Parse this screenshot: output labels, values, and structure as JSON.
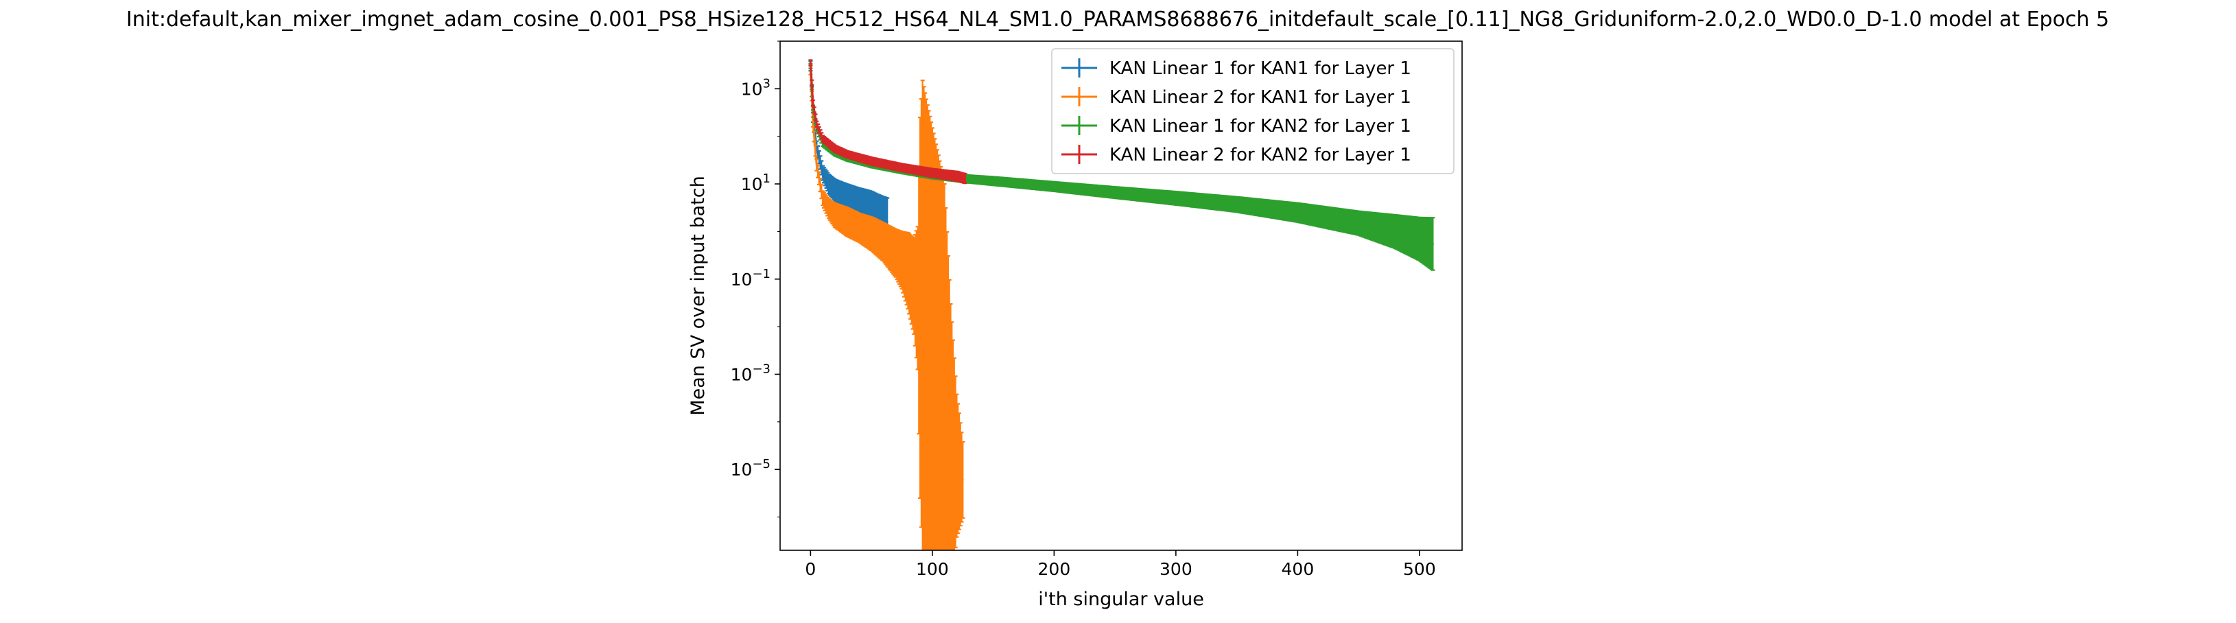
{
  "chart_data": {
    "type": "line",
    "title": "Init:default,kan_mixer_imgnet_adam_cosine_0.001_PS8_HSize128_HC512_HS64_NL4_SM1.0_PARAMS8688676_initdefault_scale_[0.11]_NG8_Griduniform-2.0,2.0_WD0.0_D-1.0 model at Epoch 5",
    "xlabel": "i'th singular value",
    "ylabel": "Mean SV over input batch",
    "xlim": [
      -25,
      535
    ],
    "ylim": [
      2e-07,
      10000
    ],
    "yscale": "log",
    "grid": false,
    "legend_position": "top-right",
    "x_ticks": [
      0,
      100,
      200,
      300,
      400,
      500
    ],
    "x_tick_labels": [
      "0",
      "100",
      "200",
      "300",
      "400",
      "500"
    ],
    "y_ticks": [
      1000,
      10,
      0.1,
      0.001,
      1e-05
    ],
    "y_tick_base": "10",
    "y_tick_exponents": [
      "3",
      "1",
      "−1",
      "−3",
      "−5"
    ],
    "series": [
      {
        "name": "KAN Linear 1 for KAN1 for Layer 1",
        "color": "#1f77b4",
        "x": [
          0,
          2,
          5,
          10,
          15,
          20,
          25,
          30,
          35,
          40,
          45,
          50,
          55,
          60,
          63
        ],
        "y": [
          3000,
          250,
          60,
          17,
          10,
          7.5,
          6.2,
          5.2,
          4.5,
          3.9,
          3.4,
          2.9,
          2.4,
          1.9,
          1.6
        ],
        "err": [
          0.1,
          0.1,
          0.12,
          0.15,
          0.2,
          0.22,
          0.25,
          0.28,
          0.3,
          0.32,
          0.35,
          0.38,
          0.4,
          0.45,
          0.5
        ]
      },
      {
        "name": "KAN Linear 2 for KAN1 for Layer 1",
        "color": "#ff7f0e",
        "x": [
          0,
          2,
          5,
          10,
          15,
          20,
          30,
          40,
          50,
          60,
          70,
          75,
          80,
          85,
          88,
          90,
          92,
          95,
          100,
          105,
          110,
          115,
          120,
          125
        ],
        "y": [
          2500,
          200,
          25,
          5,
          3,
          2.2,
          1.6,
          1.2,
          0.9,
          0.6,
          0.35,
          0.25,
          0.15,
          0.07,
          0.04,
          0.025,
          0.015,
          0.006,
          0.0015,
          0.0004,
          0.0001,
          3e-05,
          1.2e-05,
          6e-06
        ],
        "err": [
          0.1,
          0.1,
          0.12,
          0.15,
          0.2,
          0.25,
          0.3,
          0.3,
          0.35,
          0.4,
          0.5,
          0.6,
          0.8,
          1.0,
          1.5,
          4,
          5,
          5,
          5,
          5,
          5,
          3,
          1.5,
          0.8
        ]
      },
      {
        "name": "KAN Linear 1 for KAN2 for Layer 1",
        "color": "#2ca02c",
        "x": [
          0,
          2,
          5,
          10,
          20,
          30,
          50,
          75,
          100,
          125,
          150,
          200,
          250,
          300,
          350,
          400,
          450,
          480,
          500,
          511
        ],
        "y": [
          3000,
          400,
          150,
          70,
          45,
          35,
          26,
          19.5,
          15.5,
          13,
          11.5,
          8.8,
          6.6,
          5,
          3.7,
          2.5,
          1.5,
          1.0,
          0.7,
          0.55
        ],
        "err": [
          0.05,
          0.05,
          0.05,
          0.05,
          0.06,
          0.06,
          0.07,
          0.07,
          0.08,
          0.08,
          0.09,
          0.1,
          0.12,
          0.14,
          0.16,
          0.2,
          0.25,
          0.35,
          0.45,
          0.55
        ]
      },
      {
        "name": "KAN Linear 2 for KAN2 for Layer 1",
        "color": "#d62728",
        "x": [
          0,
          2,
          5,
          10,
          20,
          30,
          50,
          75,
          100,
          120,
          127
        ],
        "y": [
          3500,
          500,
          180,
          90,
          55,
          42,
          30,
          22,
          17,
          14.5,
          13
        ],
        "err": [
          0.06,
          0.06,
          0.06,
          0.06,
          0.07,
          0.07,
          0.08,
          0.08,
          0.09,
          0.1,
          0.1
        ]
      }
    ]
  }
}
